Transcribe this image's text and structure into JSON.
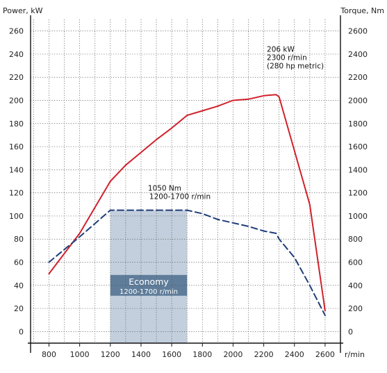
{
  "chart_data": {
    "type": "line",
    "ylabel_left": "Power, kW",
    "ylabel_right": "Torque, Nm",
    "xlabel": "r/min",
    "xlim": [
      680,
      2700
    ],
    "ylim_left": [
      -10,
      270
    ],
    "ylim_right": [
      -100,
      2700
    ],
    "x_ticks": [
      800,
      1000,
      1200,
      1400,
      1600,
      1800,
      2000,
      2200,
      2400,
      2600
    ],
    "y_ticks_left": [
      0,
      20,
      40,
      60,
      80,
      100,
      120,
      140,
      160,
      180,
      200,
      220,
      240,
      260
    ],
    "y_ticks_right": [
      0,
      200,
      400,
      600,
      800,
      1000,
      1200,
      1400,
      1600,
      1800,
      2000,
      2200,
      2400,
      2600
    ],
    "grid": true,
    "series": [
      {
        "name": "Power",
        "axis": "left",
        "color": "#d0212b",
        "style": "solid",
        "x": [
          800,
          1000,
          1200,
          1300,
          1400,
          1500,
          1600,
          1700,
          1800,
          1900,
          2000,
          2100,
          2200,
          2280,
          2300,
          2500,
          2600
        ],
        "y": [
          50,
          85,
          130,
          144,
          155,
          166,
          176,
          187,
          191,
          195,
          200,
          201,
          204,
          205,
          203,
          110,
          18
        ]
      },
      {
        "name": "Torque",
        "axis": "right",
        "color": "#1f3d7a",
        "style": "dashed",
        "x": [
          800,
          1000,
          1200,
          1700,
          1800,
          1900,
          2000,
          2100,
          2200,
          2280,
          2300,
          2400,
          2500,
          2600
        ],
        "y": [
          600,
          820,
          1050,
          1050,
          1020,
          970,
          940,
          910,
          870,
          850,
          800,
          640,
          400,
          140
        ]
      }
    ],
    "economy_band": {
      "x_range": [
        1200,
        1700
      ],
      "label": "Economy",
      "sublabel": "1200-1700 r/min",
      "color": "#c3cfdd",
      "label_bg": "#5f7d9a",
      "label_y_range_left": [
        31,
        49
      ]
    },
    "annotations": [
      {
        "lines": [
          "206 kW",
          "2300 r/min",
          "(280 hp metric)"
        ],
        "x": 2220,
        "y": 242,
        "axis": "left"
      },
      {
        "lines": [
          "1050 Nm",
          "1200-1700 r/min"
        ],
        "x": 1445,
        "y": 122,
        "axis": "left"
      }
    ]
  }
}
